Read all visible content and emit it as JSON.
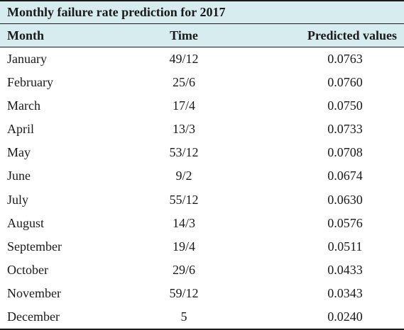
{
  "table": {
    "caption": "Monthly failure rate prediction for 2017",
    "headers": {
      "month": "Month",
      "time": "Time",
      "predicted": "Predicted values"
    },
    "rows": [
      {
        "month": "January",
        "time": "49/12",
        "predicted": "0.0763"
      },
      {
        "month": "February",
        "time": "25/6",
        "predicted": "0.0760"
      },
      {
        "month": "March",
        "time": "17/4",
        "predicted": "0.0750"
      },
      {
        "month": "April",
        "time": "13/3",
        "predicted": "0.0733"
      },
      {
        "month": "May",
        "time": "53/12",
        "predicted": "0.0708"
      },
      {
        "month": "June",
        "time": "9/2",
        "predicted": "0.0674"
      },
      {
        "month": "July",
        "time": "55/12",
        "predicted": "0.0630"
      },
      {
        "month": "August",
        "time": "14/3",
        "predicted": "0.0576"
      },
      {
        "month": "September",
        "time": "19/4",
        "predicted": "0.0511"
      },
      {
        "month": "October",
        "time": "29/6",
        "predicted": "0.0433"
      },
      {
        "month": "November",
        "time": "59/12",
        "predicted": "0.0343"
      },
      {
        "month": "December",
        "time": "5",
        "predicted": "0.0240"
      }
    ]
  },
  "colors": {
    "header_background": "#d6ecef",
    "rule": "#1a1a1a"
  }
}
